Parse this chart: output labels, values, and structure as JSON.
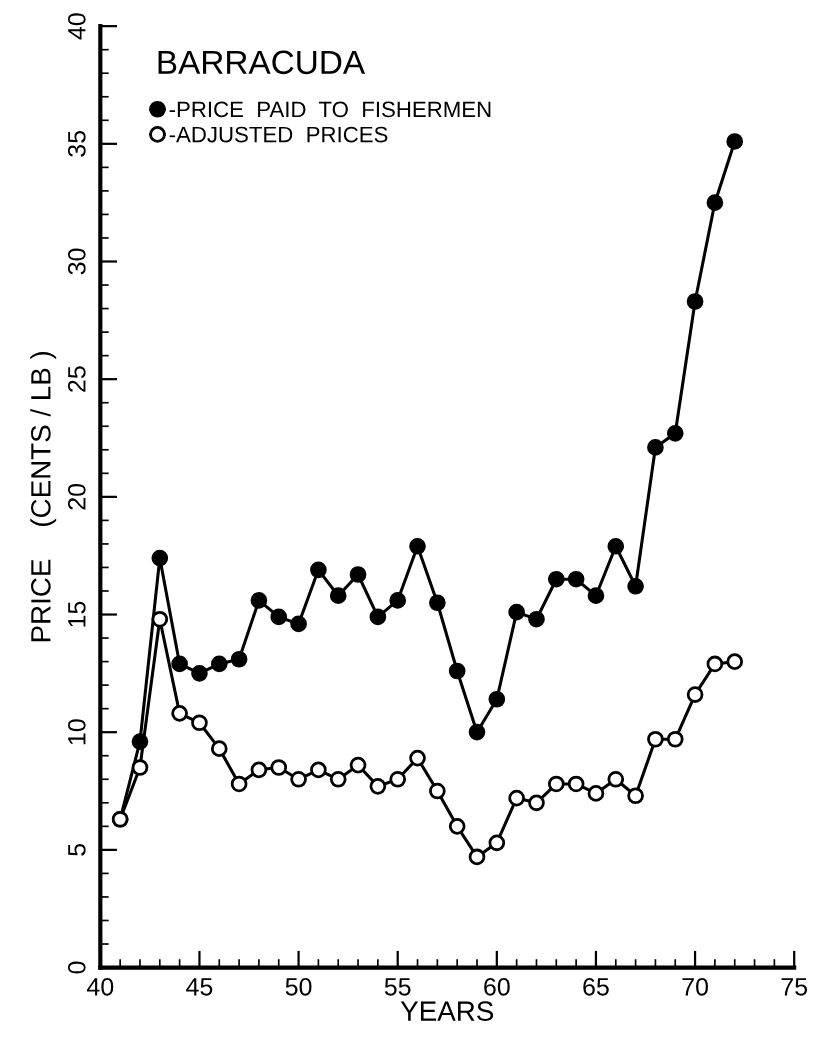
{
  "chart_data": {
    "type": "line",
    "title": "BARRACUDA",
    "xlabel": "YEARS",
    "ylabel": "PRICE    (CENTS / LB )",
    "x": [
      41,
      42,
      43,
      44,
      45,
      46,
      47,
      48,
      49,
      50,
      51,
      52,
      53,
      54,
      55,
      56,
      57,
      58,
      59,
      60,
      61,
      62,
      63,
      64,
      65,
      66,
      67,
      68,
      69,
      70,
      71,
      72
    ],
    "series": [
      {
        "name": "-PRICE  PAID  TO  FISHERMEN",
        "color": "#000000",
        "marker": "circle",
        "values": [
          6.3,
          9.6,
          17.4,
          12.9,
          12.5,
          12.9,
          13.1,
          15.6,
          14.9,
          14.6,
          16.9,
          15.8,
          16.7,
          14.9,
          15.6,
          17.9,
          15.5,
          12.6,
          10.0,
          11.4,
          15.1,
          14.8,
          16.5,
          16.5,
          15.8,
          17.9,
          16.2,
          22.1,
          22.7,
          28.3,
          32.5,
          35.1
        ]
      },
      {
        "name": "-ADJUSTED  PRICES",
        "color": "#000000",
        "marker": "open circle",
        "values": [
          6.3,
          8.5,
          14.8,
          10.8,
          10.4,
          9.3,
          7.8,
          8.4,
          8.5,
          8.0,
          8.4,
          8.0,
          8.6,
          7.7,
          8.0,
          8.9,
          7.5,
          6.0,
          4.7,
          5.3,
          7.2,
          7.0,
          7.8,
          7.8,
          7.4,
          8.0,
          7.3,
          9.7,
          9.7,
          11.6,
          12.9,
          13.0
        ]
      }
    ],
    "xlim": [
      40,
      75
    ],
    "xticks": [
      40,
      45,
      50,
      55,
      60,
      65,
      70,
      75
    ],
    "ylim": [
      0,
      40
    ],
    "yticks": [
      0,
      5,
      10,
      15,
      20,
      25,
      30,
      35,
      40
    ],
    "grid": false,
    "legend": "top left",
    "line_style": "solid"
  }
}
